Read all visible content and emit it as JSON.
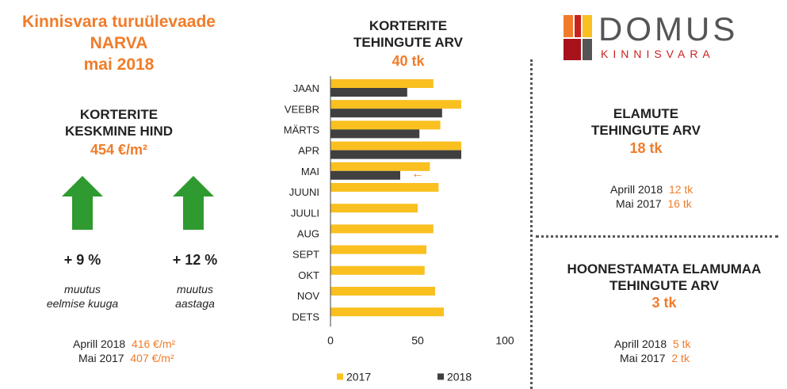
{
  "header": {
    "line1": "Kinnisvara turuülevaade",
    "line2": "NARVA",
    "line3": "mai 2018"
  },
  "avg_price": {
    "title1": "KORTERITE",
    "title2": "KESKMINE HIND",
    "value": "454 €/m²",
    "monthly": {
      "pct": "+ 9 %",
      "note1": "muutus",
      "note2": "eelmise kuuga"
    },
    "yearly": {
      "pct": "+ 12 %",
      "note1": "muutus",
      "note2": "aastaga"
    },
    "compare": [
      {
        "label": "Aprill 2018",
        "value": "416 €/m²"
      },
      {
        "label": "Mai 2017",
        "value": "407 €/m²"
      }
    ]
  },
  "apartments": {
    "title1": "KORTERITE",
    "title2": "TEHINGUTE ARV",
    "value": "40 tk"
  },
  "logo": {
    "name": "DOMUS",
    "sub": "KINNISVARA"
  },
  "houses": {
    "title1": "ELAMUTE",
    "title2": "TEHINGUTE ARV",
    "value": "18 tk",
    "compare": [
      {
        "label": "Aprill 2018",
        "value": "12 tk"
      },
      {
        "label": "Mai 2017",
        "value": "16 tk"
      }
    ]
  },
  "land": {
    "title1": "HOONESTAMATA ELAMUMAA",
    "title2": "TEHINGUTE ARV",
    "value": "3 tk",
    "compare": [
      {
        "label": "Aprill 2018",
        "value": "5 tk"
      },
      {
        "label": "Mai 2017",
        "value": "2 tk"
      }
    ]
  },
  "chart_data": {
    "type": "bar",
    "orientation": "horizontal",
    "title": "KORTERITE TEHINGUTE ARV",
    "categories": [
      "JAAN",
      "VEEBR",
      "MÄRTS",
      "APR",
      "MAI",
      "JUUNI",
      "JUULI",
      "AUG",
      "SEPT",
      "OKT",
      "NOV",
      "DETS"
    ],
    "series": [
      {
        "name": "2017",
        "color": "#f9c020",
        "values": [
          59,
          75,
          63,
          75,
          57,
          62,
          50,
          59,
          55,
          54,
          60,
          65
        ]
      },
      {
        "name": "2018",
        "color": "#404040",
        "values": [
          44,
          64,
          51,
          75,
          40,
          null,
          null,
          null,
          null,
          null,
          null,
          null
        ]
      }
    ],
    "xlim": [
      0,
      100
    ],
    "xticks": [
      0,
      50,
      100
    ],
    "legend": "bottom",
    "annotation": "←",
    "colors": {
      "accent": "#f07c2a",
      "arrow": "#2f9a2f"
    }
  }
}
